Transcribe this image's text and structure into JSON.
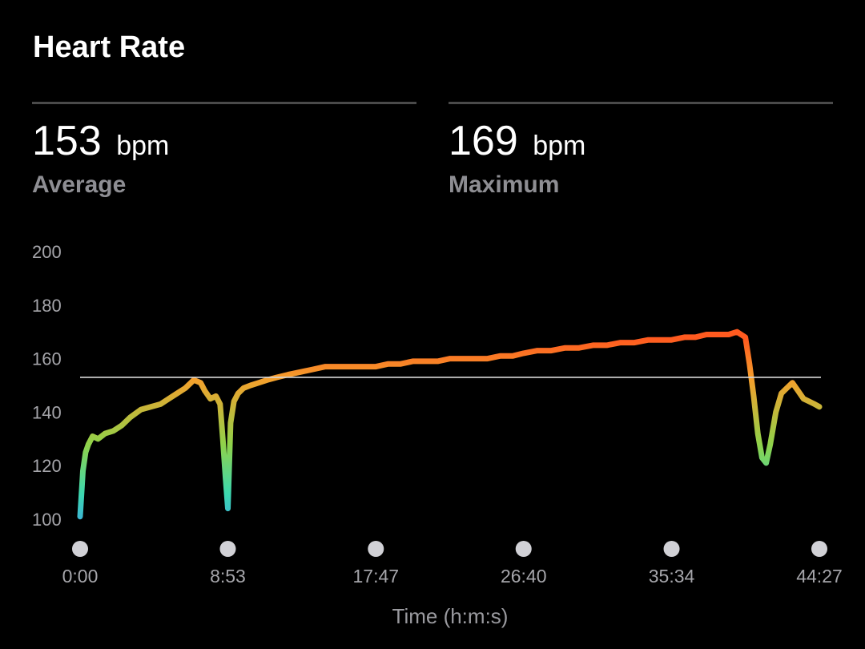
{
  "header": {
    "title": "Heart Rate"
  },
  "stats": [
    {
      "value": "153",
      "unit": "bpm",
      "label": "Average"
    },
    {
      "value": "169",
      "unit": "bpm",
      "label": "Maximum"
    }
  ],
  "chart_data": {
    "type": "line",
    "title": "Heart Rate",
    "xlabel": "Time (h:m:s)",
    "ylabel": "",
    "ylim": [
      100,
      200
    ],
    "yticks": [
      100,
      120,
      140,
      160,
      180,
      200
    ],
    "xlim": [
      "0:00",
      "44:27"
    ],
    "xticks": [
      "0:00",
      "8:53",
      "17:47",
      "26:40",
      "35:34",
      "44:27"
    ],
    "reference_line": {
      "value": 153
    },
    "grid": false,
    "series": [
      {
        "x": [
          "0:00",
          "0:10",
          "0:20",
          "0:30",
          "0:45",
          "1:05",
          "1:30",
          "2:00",
          "2:30",
          "3:00",
          "3:40",
          "4:15",
          "4:50",
          "5:20",
          "5:50",
          "6:20",
          "6:50",
          "7:15",
          "7:30",
          "7:50",
          "8:10",
          "8:25",
          "8:35",
          "8:45",
          "8:53",
          "9:03",
          "9:15",
          "9:30",
          "9:50",
          "10:15",
          "10:45",
          "11:15",
          "11:50",
          "12:30",
          "13:15",
          "14:00",
          "14:45",
          "15:30",
          "16:15",
          "17:00",
          "17:47",
          "18:30",
          "19:15",
          "20:00",
          "20:45",
          "21:30",
          "22:15",
          "23:00",
          "23:45",
          "24:30",
          "25:15",
          "26:00",
          "26:40",
          "27:30",
          "28:20",
          "29:10",
          "30:00",
          "30:50",
          "31:40",
          "32:30",
          "33:20",
          "34:10",
          "35:00",
          "35:34",
          "36:20",
          "37:00",
          "37:40",
          "38:20",
          "39:00",
          "39:30",
          "40:00",
          "40:15",
          "40:30",
          "40:45",
          "41:00",
          "41:15",
          "41:30",
          "41:50",
          "42:10",
          "42:30",
          "42:50",
          "43:10",
          "43:30",
          "43:50",
          "44:10",
          "44:27"
        ],
        "y": [
          101,
          118,
          125,
          128,
          131,
          130,
          132,
          133,
          135,
          138,
          141,
          142,
          143,
          145,
          147,
          149,
          152,
          151,
          148,
          145,
          146,
          143,
          130,
          115,
          104,
          136,
          144,
          147,
          149,
          150,
          151,
          152,
          153,
          154,
          155,
          156,
          157,
          157,
          157,
          157,
          157,
          158,
          158,
          159,
          159,
          159,
          160,
          160,
          160,
          160,
          161,
          161,
          162,
          163,
          163,
          164,
          164,
          165,
          165,
          166,
          166,
          167,
          167,
          167,
          168,
          168,
          169,
          169,
          169,
          170,
          168,
          158,
          146,
          132,
          123,
          121,
          128,
          140,
          147,
          149,
          151,
          148,
          145,
          144,
          143,
          142
        ]
      }
    ]
  }
}
